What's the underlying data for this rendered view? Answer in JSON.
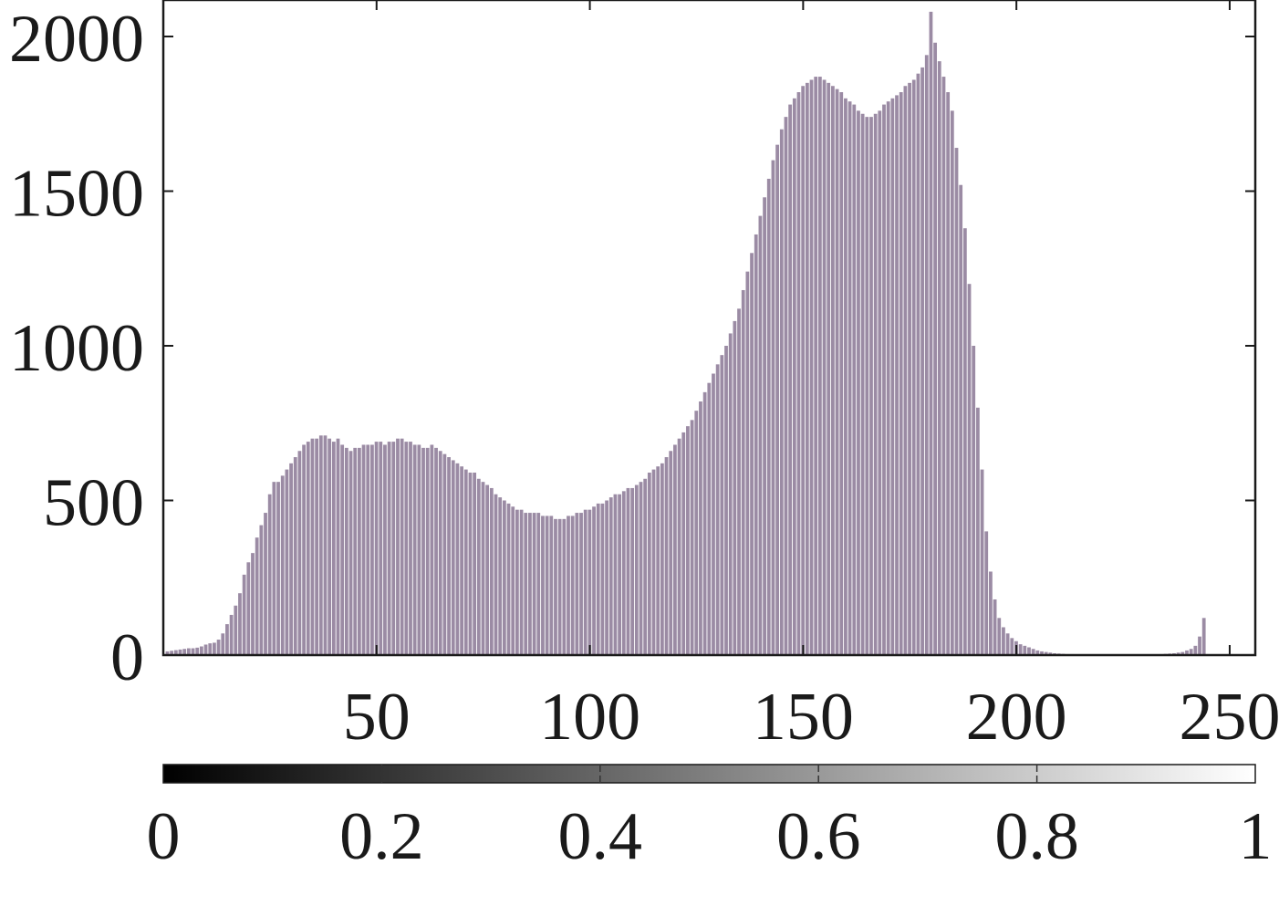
{
  "chart_data": [
    {
      "type": "bar",
      "title": "",
      "xlabel": "",
      "ylabel": "",
      "xlim": [
        0,
        256
      ],
      "ylim": [
        0,
        2000
      ],
      "x_ticks": [
        50,
        100,
        150,
        200,
        250
      ],
      "x_tick_labels": [
        "50",
        "100",
        "150",
        "200",
        "250"
      ],
      "y_ticks": [
        0,
        500,
        1000,
        1500,
        2000
      ],
      "y_tick_labels": [
        "0",
        "500",
        "1000",
        "1500",
        "2000"
      ],
      "grid": false,
      "bar_color": "#9b8ba4",
      "axis_color": "#1a1a1a",
      "bin_start": 1,
      "bin_width": 1,
      "values": [
        12,
        14,
        16,
        18,
        20,
        22,
        22,
        24,
        28,
        34,
        38,
        40,
        50,
        70,
        100,
        130,
        160,
        200,
        260,
        300,
        330,
        380,
        420,
        460,
        520,
        560,
        560,
        580,
        600,
        620,
        640,
        660,
        680,
        690,
        700,
        700,
        710,
        710,
        700,
        690,
        700,
        680,
        670,
        660,
        670,
        670,
        680,
        680,
        680,
        690,
        690,
        680,
        690,
        690,
        700,
        700,
        690,
        690,
        680,
        680,
        670,
        670,
        680,
        670,
        660,
        650,
        640,
        630,
        620,
        610,
        600,
        590,
        590,
        570,
        560,
        550,
        540,
        520,
        510,
        500,
        490,
        480,
        470,
        470,
        460,
        460,
        460,
        460,
        450,
        450,
        450,
        440,
        440,
        440,
        450,
        450,
        460,
        460,
        470,
        470,
        480,
        490,
        490,
        500,
        510,
        520,
        520,
        530,
        540,
        540,
        550,
        560,
        570,
        590,
        600,
        610,
        620,
        640,
        660,
        680,
        700,
        720,
        740,
        760,
        790,
        820,
        850,
        880,
        910,
        940,
        970,
        1000,
        1040,
        1080,
        1120,
        1180,
        1240,
        1300,
        1360,
        1420,
        1480,
        1540,
        1600,
        1650,
        1700,
        1740,
        1780,
        1800,
        1820,
        1840,
        1850,
        1860,
        1870,
        1870,
        1860,
        1850,
        1840,
        1830,
        1820,
        1800,
        1790,
        1780,
        1760,
        1750,
        1740,
        1740,
        1750,
        1760,
        1780,
        1790,
        1800,
        1810,
        1820,
        1840,
        1850,
        1860,
        1880,
        1900,
        1940,
        2080,
        1980,
        1920,
        1870,
        1820,
        1760,
        1640,
        1520,
        1380,
        1200,
        1000,
        800,
        600,
        400,
        270,
        180,
        120,
        90,
        70,
        55,
        45,
        35,
        30,
        25,
        20,
        15,
        12,
        10,
        8,
        6,
        5,
        4,
        3,
        3,
        2,
        2,
        2,
        2,
        2,
        2,
        2,
        2,
        2,
        2,
        2,
        2,
        2,
        2,
        2,
        2,
        2,
        2,
        2,
        2,
        3,
        4,
        5,
        6,
        8,
        10,
        15,
        20,
        30,
        60,
        120
      ]
    },
    {
      "type": "colorbar",
      "colormap": "gray",
      "range": [
        0,
        1
      ],
      "ticks": [
        0,
        0.2,
        0.4,
        0.6,
        0.8,
        1
      ],
      "tick_labels": [
        "0",
        "0.2",
        "0.4",
        "0.6",
        "0.8",
        "1"
      ]
    }
  ]
}
